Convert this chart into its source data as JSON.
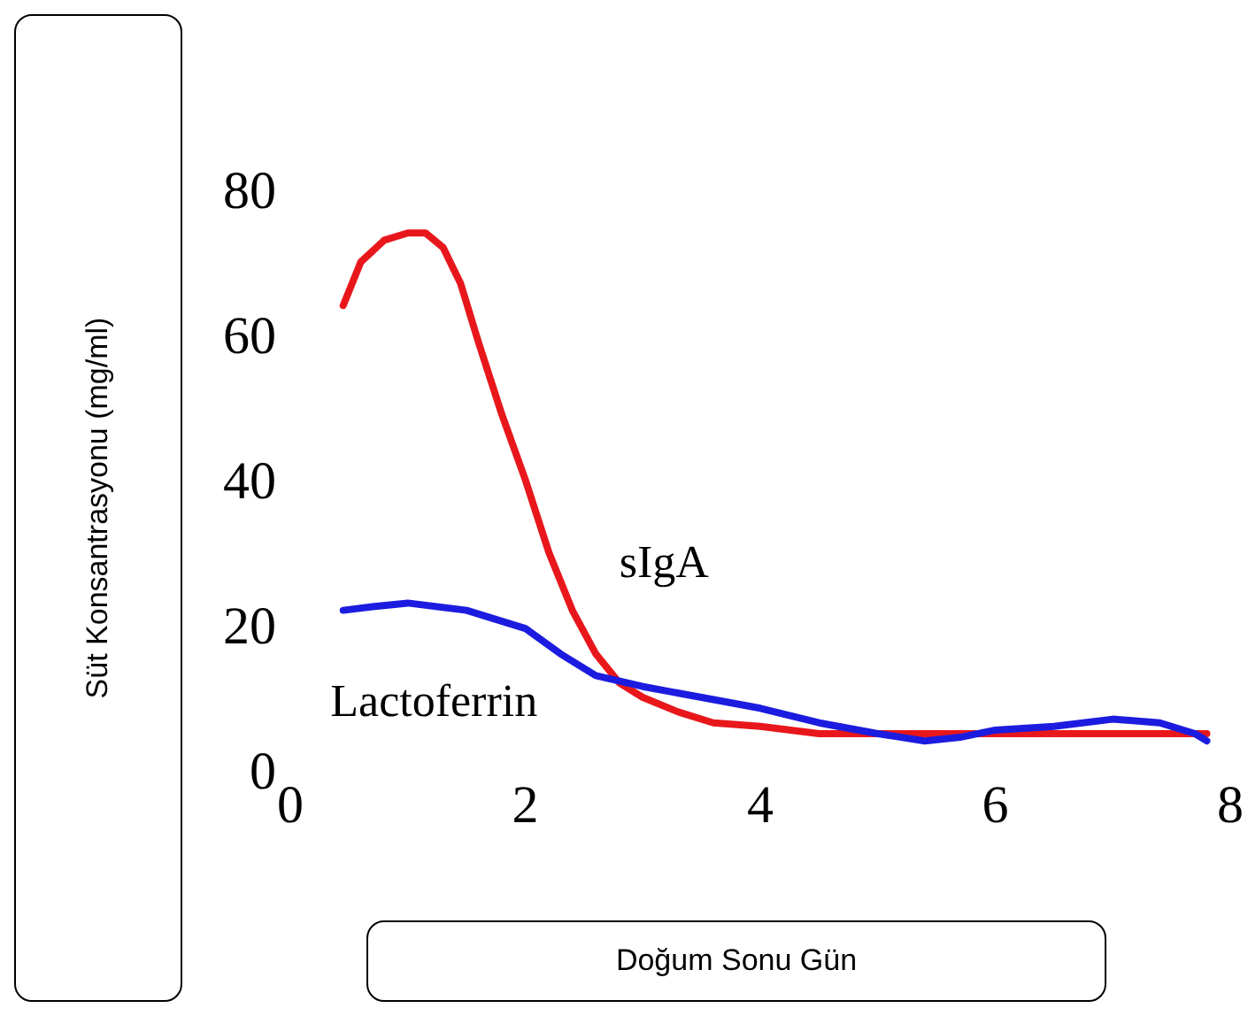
{
  "chart_data": {
    "type": "line",
    "xlabel": "Doğum Sonu Gün",
    "ylabel": "Süt Konsantrasyonu  (mg/ml)",
    "xlim": [
      0,
      8
    ],
    "xticks": [
      0,
      2,
      4,
      6,
      8
    ],
    "ylim": [
      0,
      80
    ],
    "yticks": [
      0,
      20,
      40,
      60,
      80
    ],
    "marker": "none",
    "line_style": "solid",
    "series": [
      {
        "name": "sIgA",
        "color": "#e8171b",
        "x": [
          0.45,
          0.6,
          0.8,
          1.0,
          1.15,
          1.3,
          1.45,
          1.6,
          1.8,
          2.0,
          2.2,
          2.4,
          2.6,
          2.8,
          3.0,
          3.3,
          3.6,
          4.0,
          4.5,
          5.0,
          5.5,
          6.0,
          6.5,
          7.0,
          7.5,
          7.8
        ],
        "values": [
          64,
          70,
          73,
          74,
          74,
          72,
          67,
          59,
          49,
          40,
          30,
          22,
          16,
          12,
          10,
          8,
          6.5,
          6,
          5,
          5,
          5,
          5,
          5,
          5,
          5,
          5
        ]
      },
      {
        "name": "Lactoferrin",
        "color": "#1c1ce0",
        "x": [
          0.45,
          0.7,
          1.0,
          1.5,
          2.0,
          2.3,
          2.6,
          3.0,
          3.5,
          4.0,
          4.5,
          5.0,
          5.4,
          5.7,
          6.0,
          6.5,
          7.0,
          7.4,
          7.7,
          7.8
        ],
        "values": [
          22,
          22.5,
          23,
          22,
          19.5,
          16,
          13,
          11.5,
          10,
          8.5,
          6.5,
          5,
          4,
          4.5,
          5.5,
          6,
          7,
          6.5,
          5,
          4
        ]
      }
    ]
  }
}
